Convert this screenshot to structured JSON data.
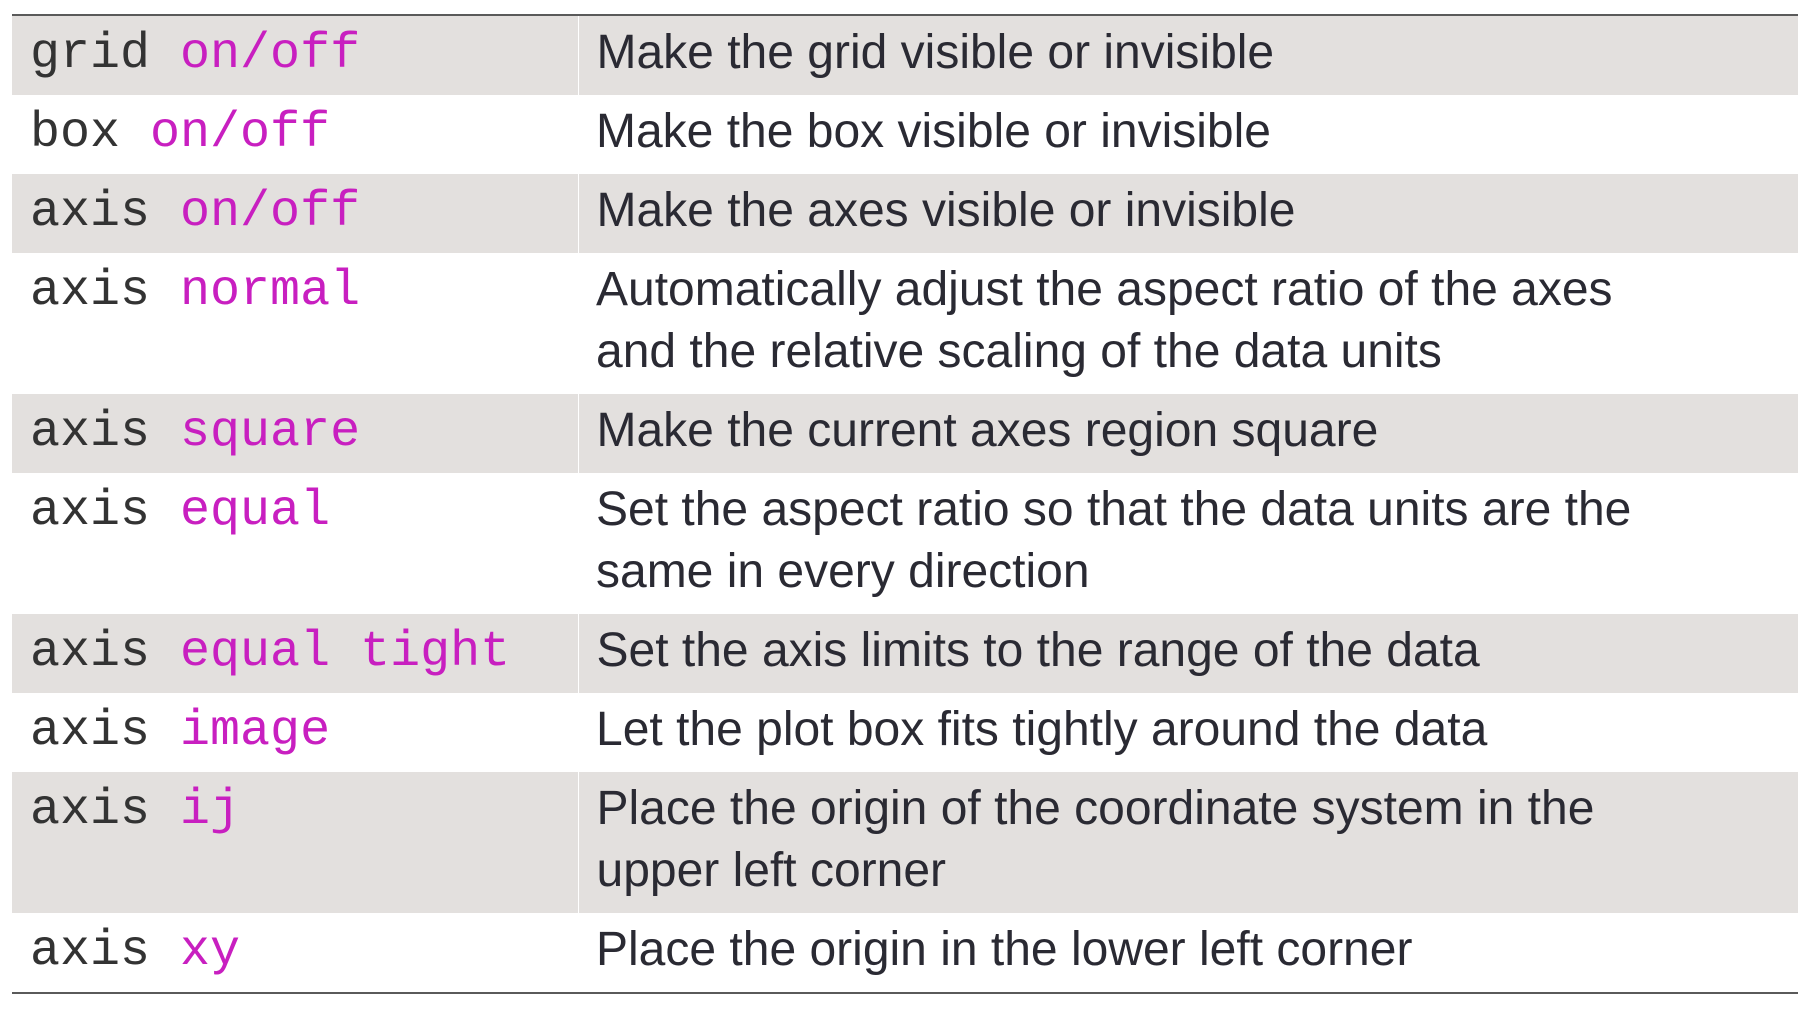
{
  "rows": [
    {
      "cmd": "grid",
      "arg": "on/off",
      "desc": [
        "Make the grid visible or invisible"
      ]
    },
    {
      "cmd": "box",
      "arg": "on/off",
      "desc": [
        "Make the box visible or invisible"
      ]
    },
    {
      "cmd": "axis",
      "arg": "on/off",
      "desc": [
        "Make the axes visible or invisible"
      ]
    },
    {
      "cmd": "axis",
      "arg": "normal",
      "desc": [
        "Automatically adjust the aspect ratio of the axes",
        "and the relative scaling of the data units"
      ]
    },
    {
      "cmd": "axis",
      "arg": "square",
      "desc": [
        "Make the current axes region square"
      ]
    },
    {
      "cmd": "axis",
      "arg": "equal",
      "desc": [
        "Set the aspect ratio so that the data units are the",
        "same in every direction"
      ]
    },
    {
      "cmd": "axis",
      "arg": "equal tight",
      "desc": [
        "Set the axis limits to the range of the data"
      ]
    },
    {
      "cmd": "axis",
      "arg": "image",
      "desc": [
        "Let the plot box fits tightly around the data"
      ]
    },
    {
      "cmd": "axis",
      "arg": "ij",
      "desc": [
        "Place the origin of the coordinate system in the",
        "upper left corner"
      ]
    },
    {
      "cmd": "axis",
      "arg": "xy",
      "desc": [
        "Place the origin in the lower left corner"
      ]
    }
  ],
  "colors": {
    "keyword": "#c81fc0",
    "shaded_row": "#e3e0de",
    "text": "#2a2a33"
  }
}
